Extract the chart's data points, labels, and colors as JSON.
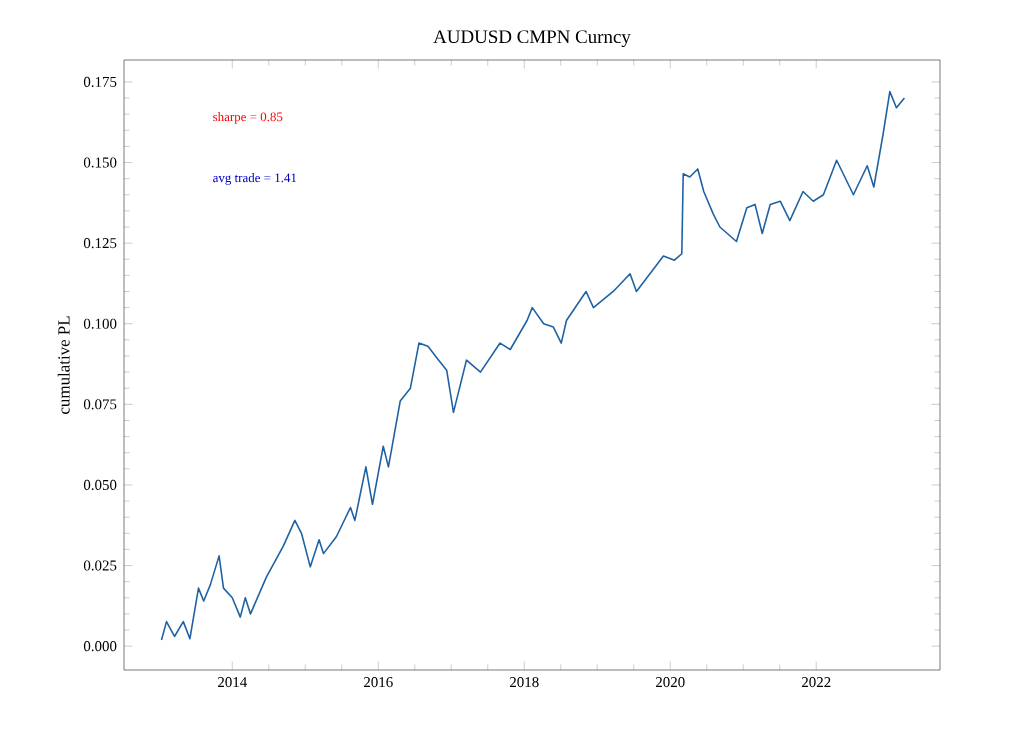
{
  "chart_data": {
    "type": "line",
    "title": "AUDUSD CMPN Curncy",
    "ylabel": "cumulative PL",
    "annotations": [
      "sharpe = 0.85",
      "avg trade = 1.41"
    ],
    "x": [
      "2013-01-12",
      "2013-02-06",
      "2013-03-18",
      "2013-05-01",
      "2013-06-03",
      "2013-07-16",
      "2013-08-11",
      "2013-09-13",
      "2013-10-27",
      "2013-11-18",
      "2014-01-01",
      "2014-02-10",
      "2014-03-07",
      "2014-04-02",
      "2014-06-21",
      "2014-09-13",
      "2014-11-10",
      "2014-12-13",
      "2015-01-26",
      "2015-03-11",
      "2015-04-02",
      "2015-06-06",
      "2015-08-15",
      "2015-09-06",
      "2015-10-31",
      "2015-12-03",
      "2016-01-26",
      "2016-02-21",
      "2016-04-20",
      "2016-06-10",
      "2016-07-23",
      "2016-09-06",
      "2016-10-30",
      "2016-12-09",
      "2017-01-12",
      "2017-03-18",
      "2017-05-27",
      "2017-09-02",
      "2017-10-23",
      "2018-01-15",
      "2018-02-10",
      "2018-04-08",
      "2018-05-26",
      "2018-07-05",
      "2018-07-31",
      "2018-11-06",
      "2018-12-13",
      "2019-03-22",
      "2019-06-14",
      "2019-07-16",
      "2019-11-28",
      "2020-01-22",
      "2020-02-28",
      "2020-03-06",
      "2020-04-08",
      "2020-05-18",
      "2020-06-17",
      "2020-08-04",
      "2020-09-06",
      "2020-11-28",
      "2021-01-19",
      "2021-03-01",
      "2021-04-06",
      "2021-05-16",
      "2021-07-05",
      "2021-08-22",
      "2021-10-27",
      "2021-12-17",
      "2022-02-06",
      "2022-04-13",
      "2022-07-06",
      "2022-09-13",
      "2022-10-16",
      "2022-12-02",
      "2023-01-04",
      "2023-02-06",
      "2023-03-18"
    ],
    "series": [
      {
        "color": "#1f62a3",
        "values": [
          0.0019,
          0.0076,
          0.003,
          0.0076,
          0.0023,
          0.018,
          0.014,
          0.019,
          0.028,
          0.018,
          0.015,
          0.009,
          0.015,
          0.01,
          0.0215,
          0.031,
          0.039,
          0.035,
          0.0246,
          0.033,
          0.0287,
          0.034,
          0.043,
          0.039,
          0.0556,
          0.044,
          0.062,
          0.0556,
          0.076,
          0.08,
          0.094,
          0.093,
          0.0887,
          0.0856,
          0.0725,
          0.0887,
          0.085,
          0.094,
          0.092,
          0.101,
          0.105,
          0.1,
          0.099,
          0.094,
          0.101,
          0.11,
          0.105,
          0.11,
          0.1155,
          0.11,
          0.121,
          0.1197,
          0.1217,
          0.1465,
          0.1455,
          0.148,
          0.141,
          0.134,
          0.13,
          0.1255,
          0.136,
          0.137,
          0.128,
          0.137,
          0.138,
          0.132,
          0.141,
          0.138,
          0.14,
          0.1507,
          0.14,
          0.149,
          0.1424,
          0.159,
          0.172,
          0.167,
          0.17
        ]
      }
    ],
    "xlim": [
      "2012-07-08",
      "2023-09-12"
    ],
    "xticks": [
      "2014",
      "2016",
      "2018",
      "2020",
      "2022"
    ],
    "ylim": [
      -0.0074,
      0.1818
    ],
    "yticks": [
      {
        "value": 0.0,
        "label": "0.000"
      },
      {
        "value": 0.025,
        "label": "0.025"
      },
      {
        "value": 0.05,
        "label": "0.050"
      },
      {
        "value": 0.075,
        "label": "0.075"
      },
      {
        "value": 0.1,
        "label": "0.100"
      },
      {
        "value": 0.125,
        "label": "0.125"
      },
      {
        "value": 0.15,
        "label": "0.150"
      },
      {
        "value": 0.175,
        "label": "0.175"
      }
    ],
    "grid": false,
    "marker": "none",
    "line_style": "solid"
  }
}
